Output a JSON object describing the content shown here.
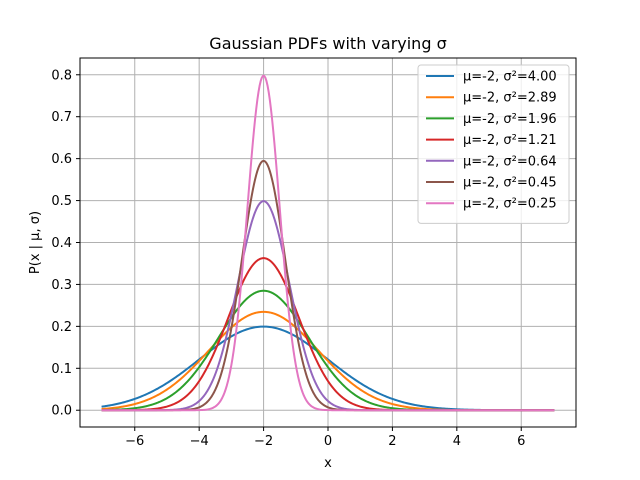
{
  "chart_data": {
    "type": "line",
    "title": "Gaussian PDFs with varying σ",
    "xlabel": "x",
    "ylabel": "P(x | μ, σ)",
    "xlim": [
      -7.7,
      7.7
    ],
    "ylim": [
      -0.04,
      0.84
    ],
    "x_range": [
      -7,
      7
    ],
    "num_points": 400,
    "mu": -2,
    "x_ticks": [
      -6,
      -4,
      -2,
      0,
      2,
      4,
      6
    ],
    "x_tick_labels": [
      "−6",
      "−4",
      "−2",
      "0",
      "2",
      "4",
      "6"
    ],
    "y_ticks": [
      0.0,
      0.1,
      0.2,
      0.3,
      0.4,
      0.5,
      0.6,
      0.7,
      0.8
    ],
    "y_tick_labels": [
      "0.0",
      "0.1",
      "0.2",
      "0.3",
      "0.4",
      "0.5",
      "0.6",
      "0.7",
      "0.8"
    ],
    "grid": true,
    "legend_position": "top-right",
    "series": [
      {
        "name": "μ=-2, σ²=4.00",
        "mu": -2,
        "variance": 4.0,
        "color": "#1f77b4"
      },
      {
        "name": "μ=-2, σ²=2.89",
        "mu": -2,
        "variance": 2.89,
        "color": "#ff7f0e"
      },
      {
        "name": "μ=-2, σ²=1.96",
        "mu": -2,
        "variance": 1.96,
        "color": "#2ca02c"
      },
      {
        "name": "μ=-2, σ²=1.21",
        "mu": -2,
        "variance": 1.21,
        "color": "#d62728"
      },
      {
        "name": "μ=-2, σ²=0.64",
        "mu": -2,
        "variance": 0.64,
        "color": "#9467bd"
      },
      {
        "name": "μ=-2, σ²=0.45",
        "mu": -2,
        "variance": 0.45,
        "color": "#8c564b"
      },
      {
        "name": "μ=-2, σ²=0.25",
        "mu": -2,
        "variance": 0.25,
        "color": "#e377c2"
      }
    ]
  }
}
